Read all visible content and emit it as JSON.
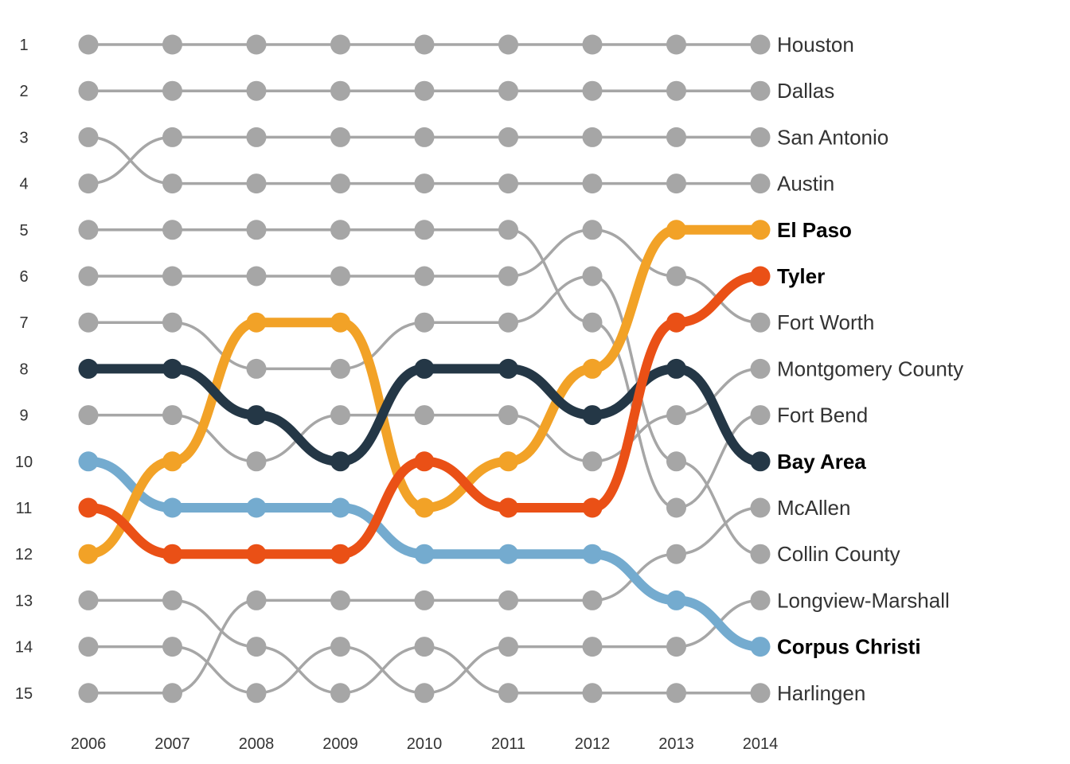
{
  "chart_data": {
    "type": "line",
    "subtype": "bump",
    "title": "",
    "xlabel": "",
    "ylabel": "",
    "x": [
      2006,
      2007,
      2008,
      2009,
      2010,
      2011,
      2012,
      2013,
      2014
    ],
    "y_ticks": [
      1,
      2,
      3,
      4,
      5,
      6,
      7,
      8,
      9,
      10,
      11,
      12,
      13,
      14,
      15
    ],
    "ylim": [
      1,
      15
    ],
    "y_reversed": true,
    "grid": false,
    "legend": "direct labels at right end of lines",
    "default_color": "#a6a6a6",
    "series": [
      {
        "name": "Houston",
        "highlight": false,
        "color": "#a6a6a6",
        "values": [
          1,
          1,
          1,
          1,
          1,
          1,
          1,
          1,
          1
        ]
      },
      {
        "name": "Dallas",
        "highlight": false,
        "color": "#a6a6a6",
        "values": [
          2,
          2,
          2,
          2,
          2,
          2,
          2,
          2,
          2
        ]
      },
      {
        "name": "San Antonio",
        "highlight": false,
        "color": "#a6a6a6",
        "values": [
          4,
          3,
          3,
          3,
          3,
          3,
          3,
          3,
          3
        ]
      },
      {
        "name": "Austin",
        "highlight": false,
        "color": "#a6a6a6",
        "values": [
          3,
          4,
          4,
          4,
          4,
          4,
          4,
          4,
          4
        ]
      },
      {
        "name": "El Paso",
        "highlight": true,
        "color": "#f2a227",
        "values": [
          12,
          10,
          7,
          7,
          11,
          10,
          8,
          5,
          5
        ]
      },
      {
        "name": "Tyler",
        "highlight": true,
        "color": "#ea5016",
        "values": [
          11,
          12,
          12,
          12,
          10,
          11,
          11,
          7,
          6
        ]
      },
      {
        "name": "Fort Worth",
        "highlight": false,
        "color": "#a6a6a6",
        "values": [
          6,
          6,
          6,
          6,
          6,
          6,
          5,
          6,
          7
        ]
      },
      {
        "name": "Montgomery County",
        "highlight": false,
        "color": "#a6a6a6",
        "values": [
          9,
          9,
          10,
          9,
          9,
          9,
          10,
          9,
          8
        ]
      },
      {
        "name": "Fort Bend",
        "highlight": false,
        "color": "#a6a6a6",
        "values": [
          5,
          5,
          5,
          5,
          5,
          5,
          7,
          11,
          9
        ]
      },
      {
        "name": "Bay Area",
        "highlight": true,
        "color": "#243746",
        "values": [
          8,
          8,
          9,
          10,
          8,
          8,
          9,
          8,
          10
        ]
      },
      {
        "name": "McAllen",
        "highlight": false,
        "color": "#a6a6a6",
        "values": [
          15,
          15,
          13,
          13,
          13,
          13,
          13,
          12,
          11
        ]
      },
      {
        "name": "Collin County",
        "highlight": false,
        "color": "#a6a6a6",
        "values": [
          7,
          7,
          8,
          8,
          7,
          7,
          6,
          10,
          12
        ]
      },
      {
        "name": "Longview-Marshall",
        "highlight": false,
        "color": "#a6a6a6",
        "values": [
          14,
          14,
          15,
          14,
          15,
          14,
          14,
          14,
          13
        ]
      },
      {
        "name": "Corpus Christi",
        "highlight": true,
        "color": "#74abcf",
        "values": [
          10,
          11,
          11,
          11,
          12,
          12,
          12,
          13,
          14
        ]
      },
      {
        "name": "Harlingen",
        "highlight": false,
        "color": "#a6a6a6",
        "values": [
          13,
          13,
          14,
          15,
          14,
          15,
          15,
          15,
          15
        ]
      }
    ]
  }
}
